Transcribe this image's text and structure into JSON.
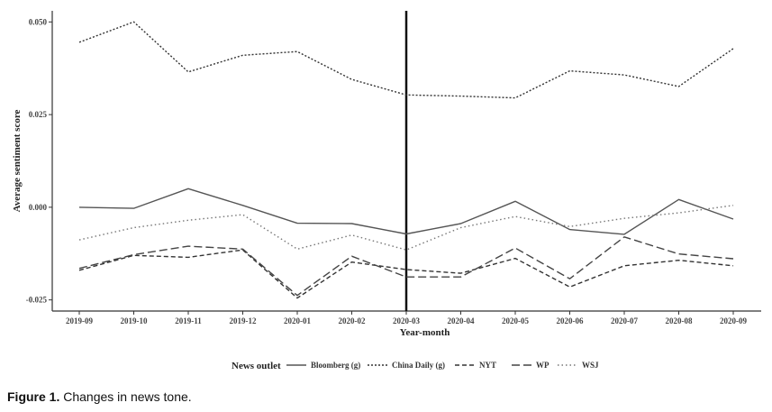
{
  "chart_data": {
    "type": "line",
    "xlabel": "Year-month",
    "ylabel": "Average sentiment score",
    "categories": [
      "2019-09",
      "2019-10",
      "2019-11",
      "2019-12",
      "2020-01",
      "2020-02",
      "2020-03",
      "2020-04",
      "2020-05",
      "2020-06",
      "2020-07",
      "2020-08",
      "2020-09"
    ],
    "ylim": [
      -0.028,
      0.053
    ],
    "yticks": [
      -0.025,
      0.0,
      0.025,
      0.05
    ],
    "ytick_labels": [
      "-0.025",
      "0.000",
      "0.025",
      "0.050"
    ],
    "grid": false,
    "vline": {
      "x": "2020-03"
    },
    "legend": {
      "title": "News outlet",
      "position": "bottom"
    },
    "series": [
      {
        "name": "Bloomberg (g)",
        "style": "solid",
        "color": "#555555",
        "values": [
          0.0,
          -0.0003,
          0.005,
          0.0005,
          -0.0043,
          -0.0044,
          -0.0072,
          -0.0044,
          0.0016,
          -0.006,
          -0.0073,
          0.0021,
          -0.0032
        ]
      },
      {
        "name": "China Daily (g)",
        "style": "dotted-dense",
        "color": "#333333",
        "values": [
          0.0445,
          0.05,
          0.0365,
          0.041,
          0.042,
          0.0345,
          0.0303,
          0.03,
          0.0295,
          0.0368,
          0.0357,
          0.0326,
          0.0428
        ]
      },
      {
        "name": "NYT",
        "style": "dashed-short",
        "color": "#333333",
        "values": [
          -0.017,
          -0.013,
          -0.0135,
          -0.0115,
          -0.0245,
          -0.0148,
          -0.0168,
          -0.0178,
          -0.0138,
          -0.0215,
          -0.0158,
          -0.0143,
          -0.0158
        ]
      },
      {
        "name": "WP",
        "style": "dashed-long",
        "color": "#444444",
        "values": [
          -0.0165,
          -0.0128,
          -0.0105,
          -0.0113,
          -0.0238,
          -0.0132,
          -0.0188,
          -0.0188,
          -0.011,
          -0.0193,
          -0.008,
          -0.0126,
          -0.0139
        ]
      },
      {
        "name": "WSJ",
        "style": "dotted",
        "color": "#777777",
        "values": [
          -0.0088,
          -0.0055,
          -0.0035,
          -0.002,
          -0.0113,
          -0.0075,
          -0.0115,
          -0.0055,
          -0.0025,
          -0.0052,
          -0.003,
          -0.0015,
          0.0005
        ]
      }
    ]
  },
  "caption": {
    "label": "Figure 1.",
    "text": "Changes in news tone."
  }
}
